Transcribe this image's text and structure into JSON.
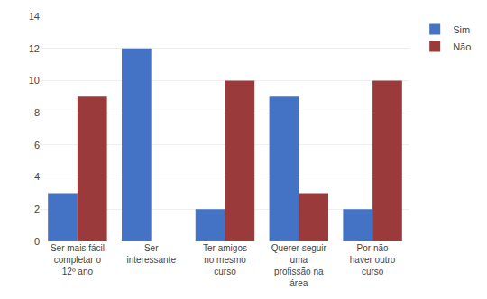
{
  "chart_data": {
    "type": "bar",
    "categories": [
      "Ser mais fácil\ncompletar o\n12º ano",
      "Ser\ninteressante",
      "Ter amigos\nno mesmo\ncurso",
      "Querer seguir\numa\nprofissão na\nárea",
      "Por não\nhaver outro\ncurso"
    ],
    "series": [
      {
        "name": "Sim",
        "color": "#4472C4",
        "values": [
          3,
          12,
          2,
          9,
          2
        ]
      },
      {
        "name": "Não",
        "color": "#9B3A3A",
        "values": [
          9,
          0,
          10,
          3,
          10
        ]
      }
    ],
    "ylim": [
      0,
      14
    ],
    "yticks": [
      0,
      2,
      4,
      6,
      8,
      10,
      12,
      14
    ],
    "grid": true,
    "legend": "right"
  }
}
